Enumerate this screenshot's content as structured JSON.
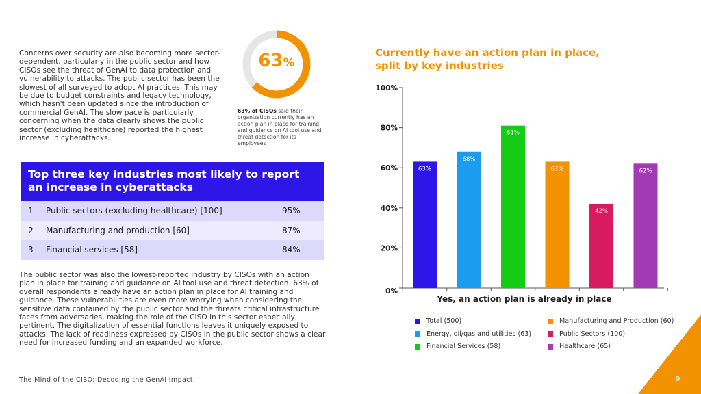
{
  "intro_paragraph": "Concerns over security are also becoming more sector-dependent, particularly in the public sector and how CISOs see the threat of GenAI to data protection and vulnerability to attacks. The public sector has been the slowest of all surveyed to adopt AI practices. This may be due to budget constraints and legacy technology, which hasn't been updated since the introduction of commercial GenAI. The slow pace is particularly concerning when the data clearly shows the public sector (excluding healthcare) reported the highest increase in cyberattacks.",
  "stat": {
    "value": 63,
    "value_number": "63",
    "value_unit": "%",
    "caption_bold": "63% of CISOs",
    "caption_rest": " said their organization currently has an action plan in place for training and guidance on AI tool use and threat detection for its employees",
    "ring_color": "#f39200",
    "track_color": "#e6e6e6"
  },
  "industries_table": {
    "title": "Top three key industries most likely to report an increase in cyberattacks",
    "rows": [
      {
        "rank": "1",
        "name": "Public sectors (excluding healthcare) [100]",
        "value": "95%"
      },
      {
        "rank": "2",
        "name": "Manufacturing and production [60]",
        "value": "87%"
      },
      {
        "rank": "3",
        "name": "Financial services [58]",
        "value": "84%"
      }
    ]
  },
  "body_paragraph": "The public sector was also the lowest-reported industry by CISOs with an action plan in place for training and guidance on AI tool use and threat detection. 63% of overall respondents already have an action plan in place for AI training and guidance. These vulnerabilities are even more worrying when considering the sensitive data contained by the public sector and the threats critical infrastructure faces from adversaries, making the role of the CISO in this sector especially pertinent. The digitalization of essential functions leaves it uniquely exposed to attacks. The lack of readiness expressed by CISOs in the public sector shows a clear need for increased funding and an expanded workforce.",
  "footer": {
    "text": "The Mind of the CISO: Decoding the GenAI Impact",
    "page_number": "9"
  },
  "chart_data": {
    "type": "bar",
    "title": "Currently have an action plan in place, split by key industries",
    "xlabel": "Yes, an action plan is already in place",
    "ylabel": "",
    "ylim": [
      0,
      100
    ],
    "yticks": [
      "0%",
      "20%",
      "40%",
      "60%",
      "80%",
      "100%"
    ],
    "ytick_values": [
      0,
      20,
      40,
      60,
      80,
      100
    ],
    "series": [
      {
        "name": "Total (500)",
        "value": 63,
        "label": "63%",
        "color": "#2f16e8"
      },
      {
        "name": "Energy, oil/gas and utilities (63)",
        "value": 68,
        "label": "68%",
        "color": "#1b9cf0"
      },
      {
        "name": "Financial Services (58)",
        "value": 81,
        "label": "81%",
        "color": "#14cc14"
      },
      {
        "name": "Manufacturing and Production (60)",
        "value": 63,
        "label": "63%",
        "color": "#f39200"
      },
      {
        "name": "Public Sectors (100)",
        "value": 42,
        "label": "42%",
        "color": "#d81b60"
      },
      {
        "name": "Healthcare (65)",
        "value": 62,
        "label": "62%",
        "color": "#a23ab5"
      }
    ],
    "legend_order": [
      0,
      3,
      1,
      4,
      2,
      5
    ]
  }
}
